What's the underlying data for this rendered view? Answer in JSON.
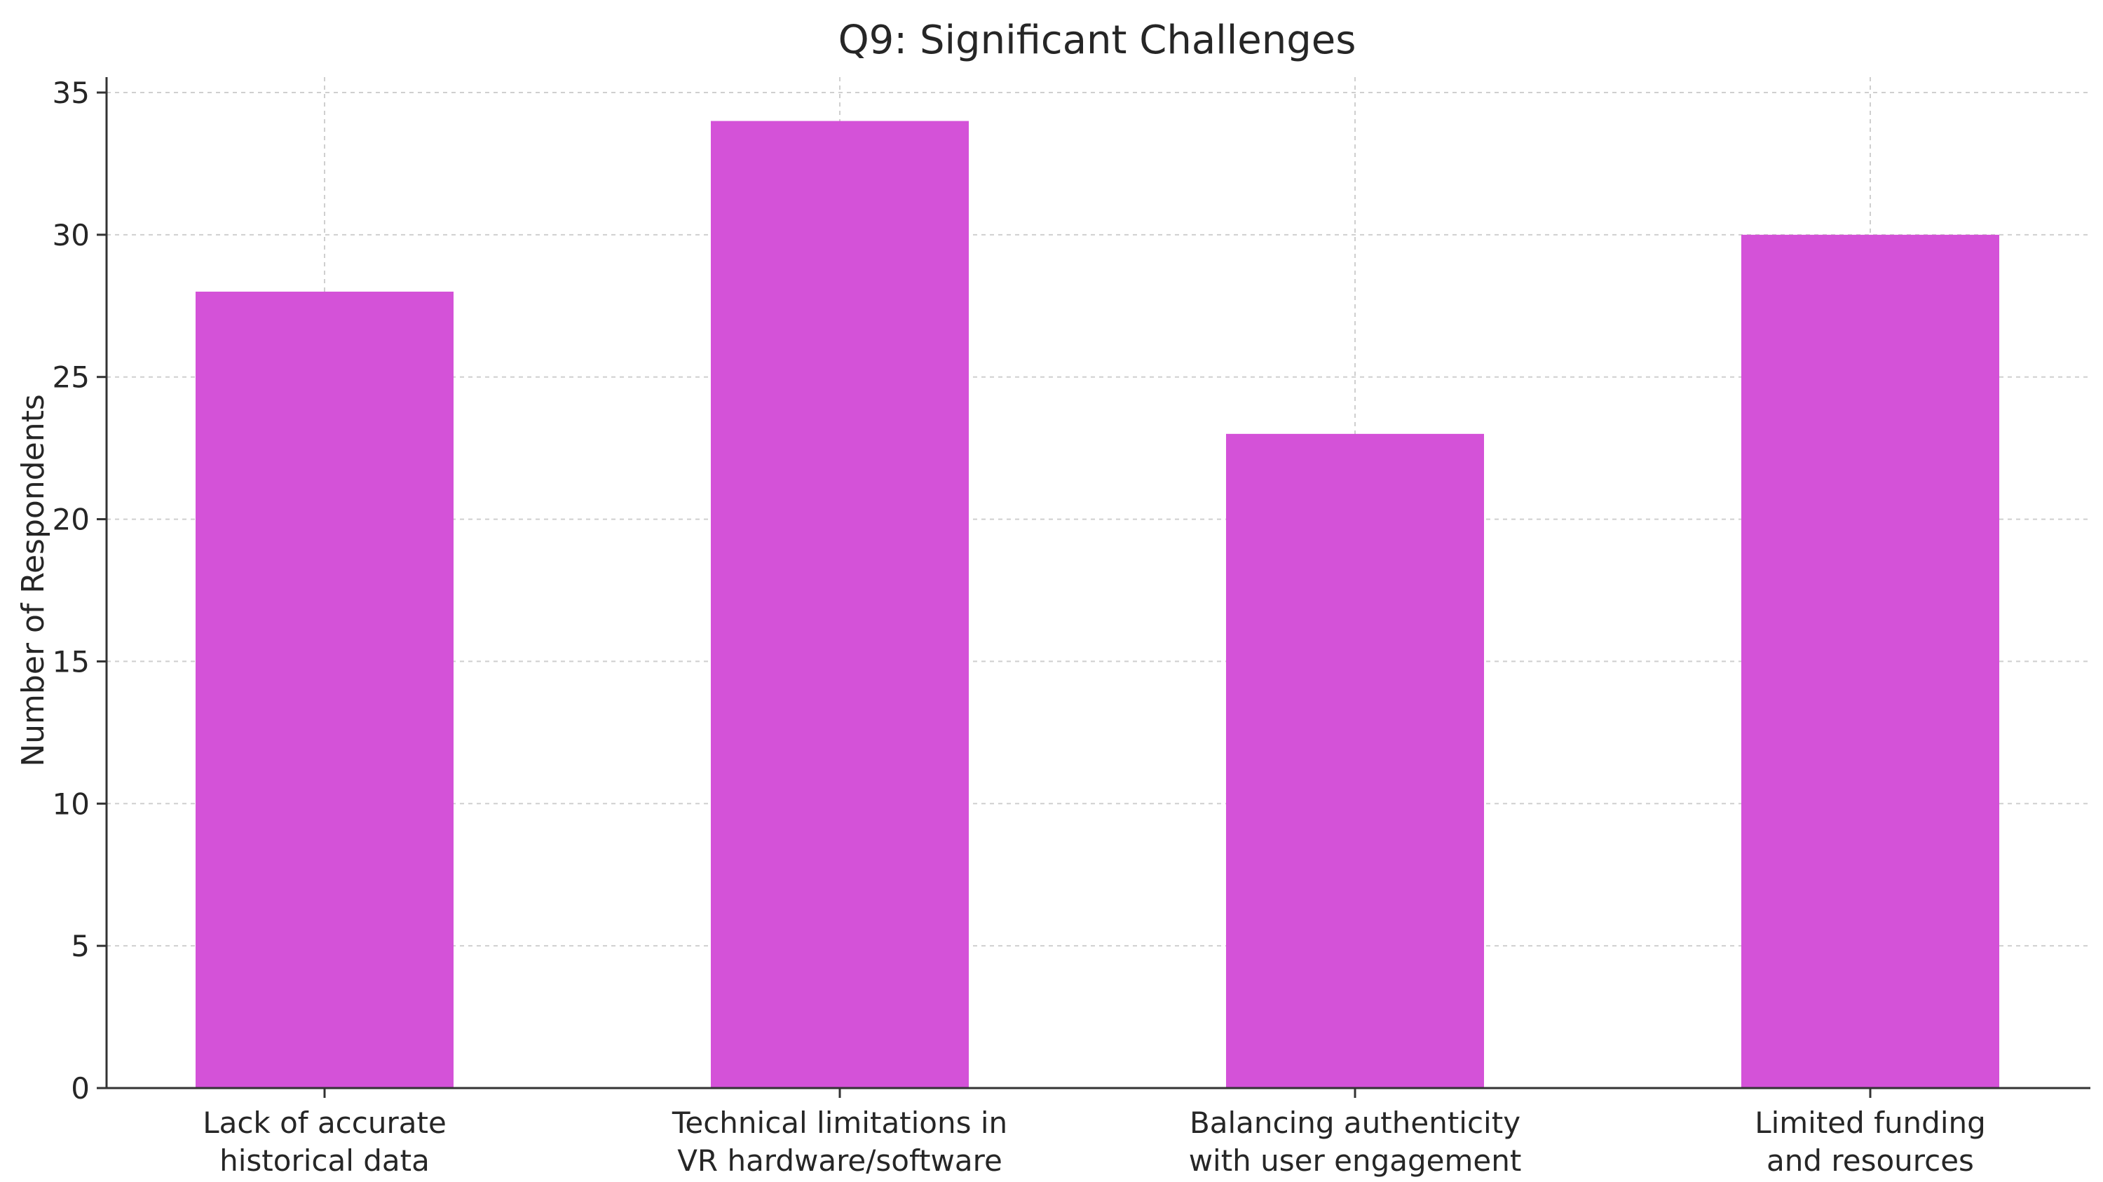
{
  "chart_data": {
    "type": "bar",
    "title": "Q9: Significant Challenges",
    "xlabel": "",
    "ylabel": "Number of Respondents",
    "categories": [
      [
        "Lack of accurate",
        "historical data"
      ],
      [
        "Technical limitations in",
        "VR hardware/software"
      ],
      [
        "Balancing authenticity",
        "with user engagement"
      ],
      [
        "Limited funding",
        "and resources"
      ]
    ],
    "values": [
      28,
      34,
      23,
      30
    ],
    "ylim": [
      0,
      35
    ],
    "yticks": [
      0,
      5,
      10,
      15,
      20,
      25,
      30,
      35
    ],
    "grid": true,
    "colors": {
      "bar": "#d452d8"
    }
  }
}
